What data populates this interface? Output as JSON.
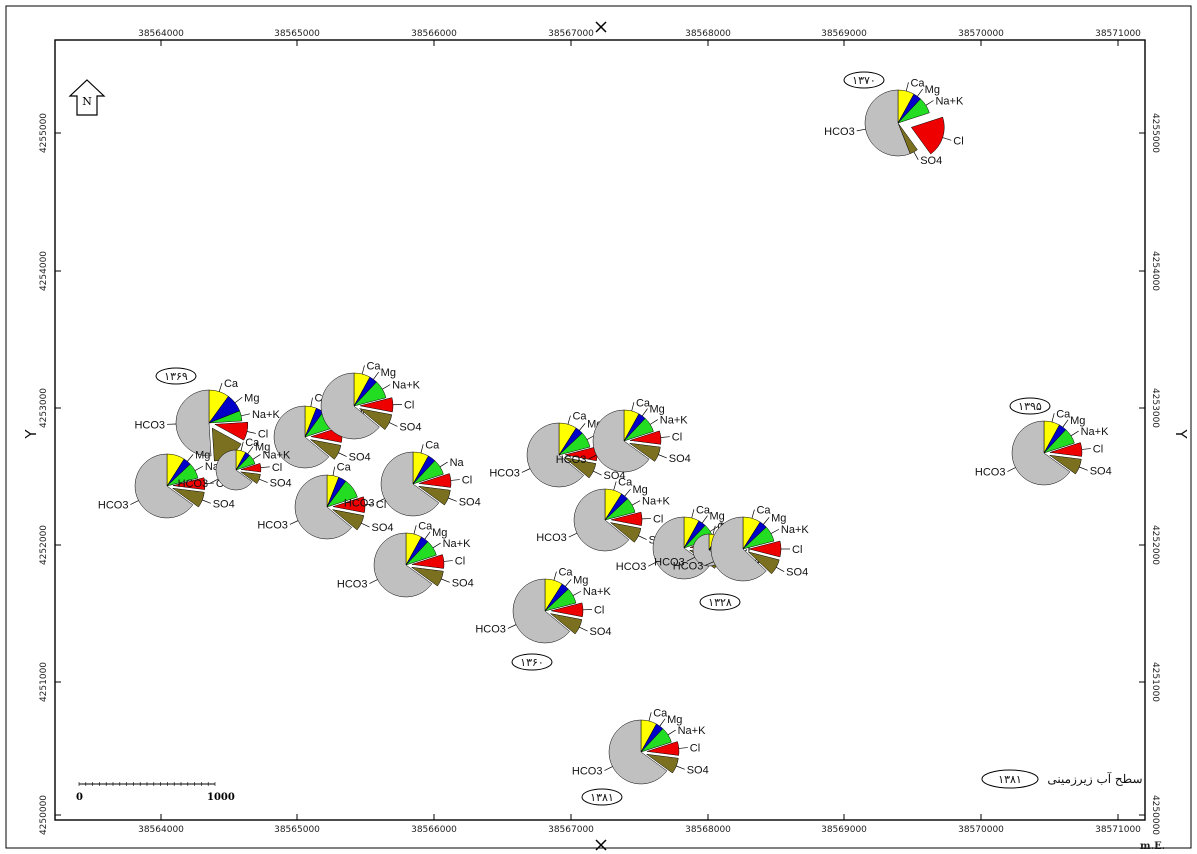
{
  "axes": {
    "x_ticks": [
      "38564000",
      "38565000",
      "38566000",
      "38567000",
      "38568000",
      "38569000",
      "38570000",
      "38571000"
    ],
    "y_ticks": [
      "4255000",
      "4254000",
      "4253000",
      "4252000",
      "4251000",
      "4250000"
    ],
    "x_letter": "X",
    "y_letter": "Y",
    "unit_label": "m.E."
  },
  "north_arrow": {
    "letter": "N"
  },
  "scale_bar": {
    "start": "0",
    "end": "1000"
  },
  "legend": {
    "year": "۱۳۸۱",
    "text": "سطح آب زیرزمینی"
  },
  "ion_colors": {
    "Ca": "#ffff00",
    "Mg": "#0000c8",
    "Na+K": "#22dd22",
    "Cl": "#ee0000",
    "SO4": "#7a7020",
    "HCO3": "#c0c0c0"
  },
  "ion_labels": [
    "Ca",
    "Mg",
    "Na+K",
    "Cl",
    "SO4",
    "HCO3"
  ],
  "stations": [
    {
      "year": "۱۳۷۰",
      "fractions": [
        0.08,
        0.04,
        0.08,
        0.2,
        0.04,
        0.56
      ],
      "labels": [
        "Ca",
        "Mg",
        "Na+K",
        "Cl",
        "SO4",
        "HCO3"
      ]
    },
    {
      "year": "۱۳۶۹",
      "fractions": [
        0.1,
        0.09,
        0.05,
        0.09,
        0.16,
        0.51
      ],
      "labels": [
        "Ca",
        "Mg",
        "Na+K",
        "Cl",
        "",
        "HCO3"
      ]
    },
    {
      "year": "",
      "fractions": [
        0.09,
        0.04,
        0.08,
        0.06,
        0.08,
        0.65
      ],
      "labels": [
        "",
        "Mg",
        "Na+K",
        "Cl",
        "SO4",
        "HCO3"
      ]
    },
    {
      "year": "",
      "fractions": [
        0.06,
        0.04,
        0.1,
        0.08,
        0.08,
        0.64
      ],
      "labels": [
        "Ca",
        "",
        "Na+K",
        "Cl",
        "SO4",
        ""
      ]
    },
    {
      "year": "",
      "fractions": [
        0.06,
        0.04,
        0.1,
        0.08,
        0.08,
        0.64
      ],
      "labels": [
        "Ca",
        "",
        "",
        "Cl",
        "SO4",
        "HCO3"
      ]
    },
    {
      "year": "",
      "fractions": [
        0.08,
        0.04,
        0.09,
        0.07,
        0.08,
        0.64
      ],
      "labels": [
        "Ca",
        "Mg",
        "Na+K",
        "Cl",
        "SO4",
        ""
      ]
    },
    {
      "year": "",
      "fractions": [
        0.08,
        0.04,
        0.08,
        0.07,
        0.08,
        0.65
      ],
      "labels": [
        "Ca",
        "",
        "Na",
        "Cl",
        "SO4",
        "HCO3"
      ]
    },
    {
      "year": "",
      "fractions": [
        0.08,
        0.04,
        0.08,
        0.07,
        0.08,
        0.65
      ],
      "labels": [
        "Ca",
        "Mg",
        "Na+K",
        "Cl",
        "SO4",
        "HCO3"
      ]
    },
    {
      "year": "",
      "fractions": [
        0.09,
        0.04,
        0.08,
        0.07,
        0.08,
        0.64
      ],
      "labels": [
        "Ca",
        "Mg",
        "Na+K",
        "Cl",
        "SO4",
        "HCO3"
      ]
    },
    {
      "year": "",
      "fractions": [
        0.08,
        0.04,
        0.08,
        0.07,
        0.08,
        0.65
      ],
      "labels": [
        "Ca",
        "Mg",
        "Na+K",
        "Cl",
        "SO4",
        "HCO3"
      ]
    },
    {
      "year": "",
      "fractions": [
        0.09,
        0.04,
        0.08,
        0.07,
        0.08,
        0.64
      ],
      "labels": [
        "Ca",
        "Mg",
        "Na+K",
        "Cl",
        "SO4",
        "HCO3"
      ]
    },
    {
      "year": "",
      "fractions": [
        0.08,
        0.04,
        0.08,
        0.07,
        0.08,
        0.65
      ],
      "labels": [
        "Ca",
        "Mg",
        "Na+K",
        "Cl",
        "SO4",
        "HCO3"
      ]
    },
    {
      "year": "",
      "fractions": [
        0.08,
        0.04,
        0.08,
        0.07,
        0.08,
        0.65
      ],
      "labels": [
        "Ca",
        "Mg",
        "Na+K",
        "Cl",
        "SO4",
        "HCO3"
      ]
    },
    {
      "year": "",
      "fractions": [
        0.08,
        0.04,
        0.08,
        0.07,
        0.08,
        0.65
      ],
      "labels": [
        "Ca",
        "Mg",
        "",
        "Cl",
        "SO4",
        "HCO3"
      ]
    },
    {
      "year": "۱۳۲۸",
      "fractions": [
        0.09,
        0.04,
        0.08,
        0.08,
        0.08,
        0.63
      ],
      "labels": [
        "Ca",
        "Mg",
        "Na+K",
        "Cl",
        "SO4",
        "HCO3"
      ]
    },
    {
      "year": "۱۳۹۵",
      "fractions": [
        0.08,
        0.04,
        0.08,
        0.07,
        0.08,
        0.65
      ],
      "labels": [
        "Ca",
        "Mg",
        "Na+K",
        "Cl",
        "SO4",
        "HCO3"
      ]
    },
    {
      "year": "۱۳۶۰",
      "fractions": [
        0.09,
        0.04,
        0.08,
        0.07,
        0.08,
        0.64
      ],
      "labels": [
        "Ca",
        "Mg",
        "Na+K",
        "Cl",
        "SO4",
        "HCO3"
      ]
    },
    {
      "year": "۱۳۸۱",
      "fractions": [
        0.08,
        0.04,
        0.08,
        0.07,
        0.08,
        0.65
      ],
      "labels": [
        "Ca",
        "Mg",
        "Na+K",
        "Cl",
        "SO4",
        "HCO3"
      ]
    }
  ]
}
